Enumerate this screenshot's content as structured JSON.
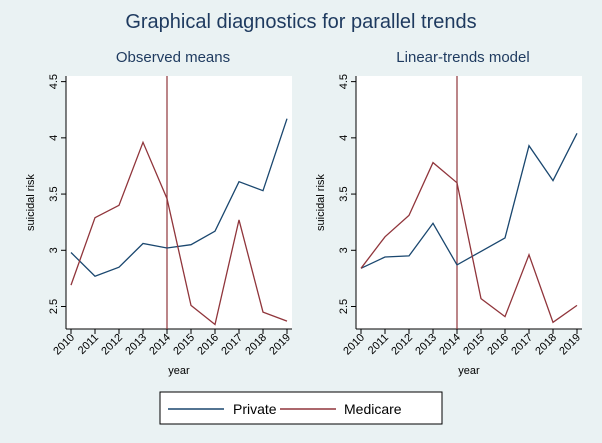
{
  "title": "Graphical diagnostics for parallel trends",
  "legend": {
    "items": [
      {
        "label": "Private",
        "color": "#1a476f"
      },
      {
        "label": "Medicare",
        "color": "#90353b"
      }
    ]
  },
  "colors": {
    "background": "#eaf2f3",
    "plot_bg": "#ffffff",
    "private": "#1a476f",
    "medicare": "#90353b",
    "treatment_line": "#90353b"
  },
  "chart_data": [
    {
      "type": "line",
      "title": "Observed means",
      "xlabel": "year",
      "ylabel": "suicidal risk",
      "x": [
        2010,
        2011,
        2012,
        2013,
        2014,
        2015,
        2016,
        2017,
        2018,
        2019
      ],
      "x_ticks": [
        "2010",
        "2011",
        "2012",
        "2013",
        "2014",
        "2015",
        "2016",
        "2017",
        "2018",
        "2019"
      ],
      "y_ticks": [
        "2.5",
        "3",
        "3.5",
        "4",
        "4.5"
      ],
      "y_tick_values": [
        2.5,
        3,
        3.5,
        4,
        4.5
      ],
      "ylim": [
        2.3,
        4.55
      ],
      "xlim": [
        2010,
        2019
      ],
      "treatment_line_x": 2014,
      "grid": false,
      "series": [
        {
          "name": "Private",
          "values": [
            2.98,
            2.77,
            2.85,
            3.06,
            3.02,
            3.05,
            3.17,
            3.61,
            3.53,
            4.17
          ]
        },
        {
          "name": "Medicare",
          "values": [
            2.69,
            3.29,
            3.4,
            3.96,
            3.46,
            2.51,
            2.34,
            3.27,
            2.45,
            2.37
          ]
        }
      ]
    },
    {
      "type": "line",
      "title": "Linear-trends model",
      "xlabel": "year",
      "ylabel": "suicidal risk",
      "x": [
        2010,
        2011,
        2012,
        2013,
        2014,
        2015,
        2016,
        2017,
        2018,
        2019
      ],
      "x_ticks": [
        "2010",
        "2011",
        "2012",
        "2013",
        "2014",
        "2015",
        "2016",
        "2017",
        "2018",
        "2019"
      ],
      "y_ticks": [
        "2.5",
        "3",
        "3.5",
        "4",
        "4.5"
      ],
      "y_tick_values": [
        2.5,
        3,
        3.5,
        4,
        4.5
      ],
      "ylim": [
        2.3,
        4.55
      ],
      "xlim": [
        2010,
        2019
      ],
      "treatment_line_x": 2014,
      "grid": false,
      "series": [
        {
          "name": "Private",
          "values": [
            2.84,
            2.94,
            2.95,
            3.24,
            2.87,
            2.99,
            3.11,
            3.93,
            3.62,
            4.04
          ]
        },
        {
          "name": "Medicare",
          "values": [
            2.84,
            3.12,
            3.31,
            3.78,
            3.6,
            2.57,
            2.41,
            2.96,
            2.36,
            2.51
          ]
        }
      ]
    }
  ]
}
